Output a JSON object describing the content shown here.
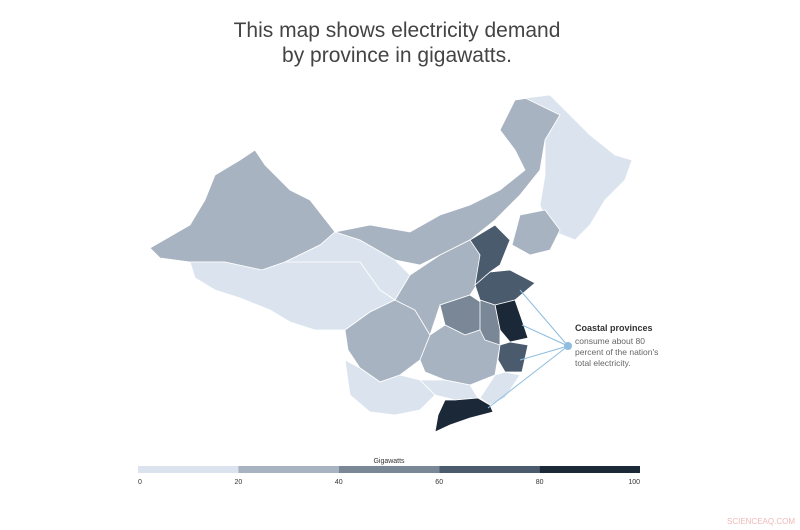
{
  "title_lines": [
    "This map shows electricity demand",
    "by province in gigawatts."
  ],
  "annotation": {
    "heading": "Coastal provinces",
    "lines": [
      "consume about 80",
      "percent of the nation's",
      "total electricity."
    ]
  },
  "legend": {
    "title": "Gigawatts",
    "ticks": [
      0,
      20,
      40,
      60,
      80,
      100
    ],
    "colors": [
      "#dbe4ee",
      "#a8b3c1",
      "#7a8797",
      "#4b5b6e",
      "#1b2838"
    ]
  },
  "watermark": "SCIENCEAQ.COM"
}
